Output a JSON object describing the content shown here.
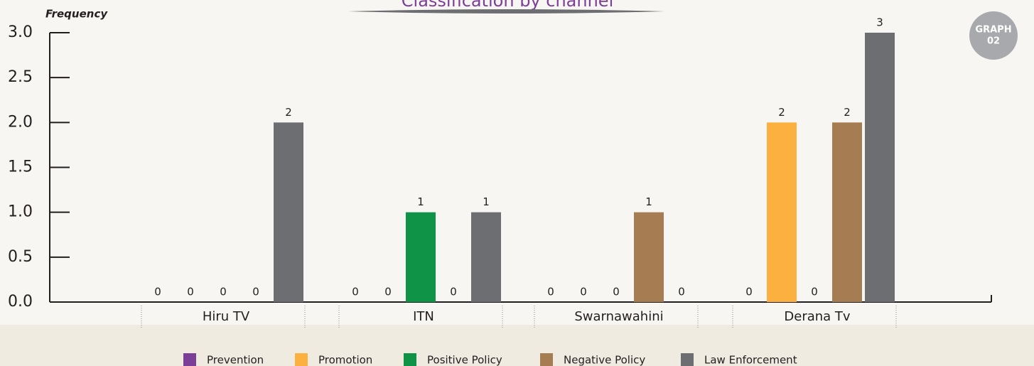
{
  "chart_data": {
    "type": "bar",
    "title": "Classification by channel",
    "y_label": "Frequency",
    "badge": [
      "GRAPH",
      "02"
    ],
    "categories": [
      "Hiru TV",
      "ITN",
      "Swarnawahini",
      "Derana Tv"
    ],
    "series": [
      {
        "name": "Prevention",
        "color": "#7b3f98",
        "values": [
          0,
          0,
          0,
          0
        ]
      },
      {
        "name": "Promotion",
        "color": "#fbb040",
        "values": [
          0,
          0,
          0,
          2
        ]
      },
      {
        "name": "Positive Policy",
        "color": "#0f9447",
        "values": [
          0,
          1,
          0,
          0
        ]
      },
      {
        "name": "Negative Policy",
        "color": "#a67c52",
        "values": [
          0,
          0,
          1,
          2
        ]
      },
      {
        "name": "Law Enforcement",
        "color": "#6d6e71",
        "values": [
          2,
          1,
          0,
          3
        ]
      }
    ],
    "ylim": [
      0,
      3
    ],
    "yticks": [
      {
        "value": 0,
        "label": "0.0"
      },
      0.5,
      {
        "value": 1,
        "label": "1.0"
      },
      1.5,
      {
        "value": 2,
        "label": "2.0"
      },
      2.5,
      {
        "value": 3,
        "label": "3.0"
      }
    ],
    "legend": "bottom"
  }
}
